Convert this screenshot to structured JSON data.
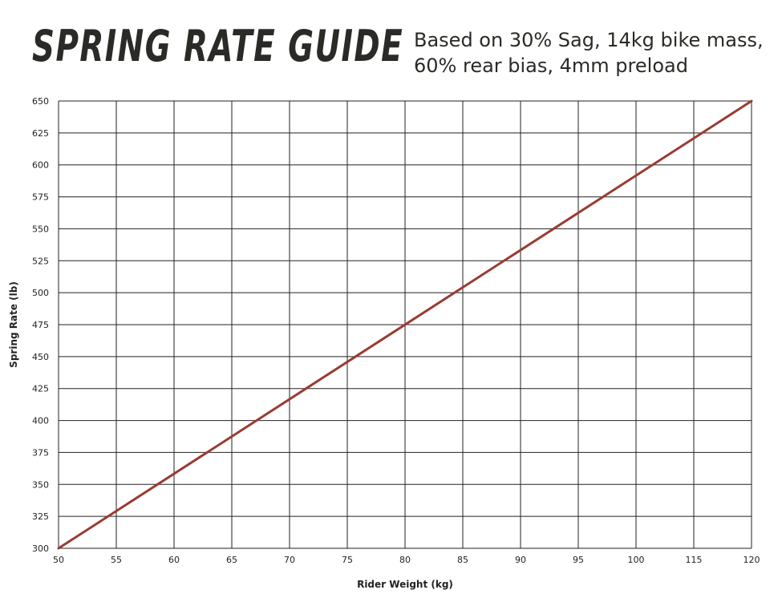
{
  "header": {
    "title": "SPRING RATE GUIDE",
    "subtitle_line1": "Based on 30% Sag, 14kg bike mass,",
    "subtitle_line2": "60% rear bias, 4mm preload"
  },
  "colors": {
    "line": "#9a3b32",
    "grid": "#222222",
    "text": "#222222"
  },
  "chart_data": {
    "type": "line",
    "title": "SPRING RATE GUIDE",
    "subtitle": "Based on 30% Sag, 14kg bike mass, 60% rear bias, 4mm preload",
    "xlabel": "Rider Weight (kg)",
    "ylabel": "Spring Rate (lb)",
    "x_ticks": [
      50,
      55,
      60,
      65,
      70,
      75,
      80,
      85,
      90,
      95,
      100,
      115,
      120
    ],
    "y_ticks": [
      300,
      325,
      350,
      375,
      400,
      425,
      450,
      475,
      500,
      525,
      550,
      575,
      600,
      625,
      650
    ],
    "ylim": [
      300,
      650
    ],
    "grid": true,
    "series": [
      {
        "name": "Spring Rate",
        "x": [
          50,
          120
        ],
        "y": [
          300,
          650
        ]
      }
    ]
  }
}
